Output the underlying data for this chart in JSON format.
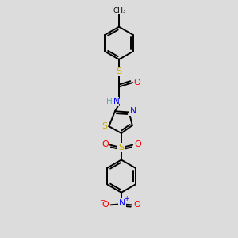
{
  "background_color": "#dcdcdc",
  "atom_colors": {
    "C": "#000000",
    "H": "#5aafaf",
    "N": "#0000ff",
    "O": "#ff0000",
    "S": "#ccaa00"
  },
  "bond_color": "#000000",
  "bond_width": 1.4,
  "figsize": [
    3.0,
    3.0
  ],
  "dpi": 100,
  "xlim": [
    0,
    10
  ],
  "ylim": [
    0,
    10
  ]
}
